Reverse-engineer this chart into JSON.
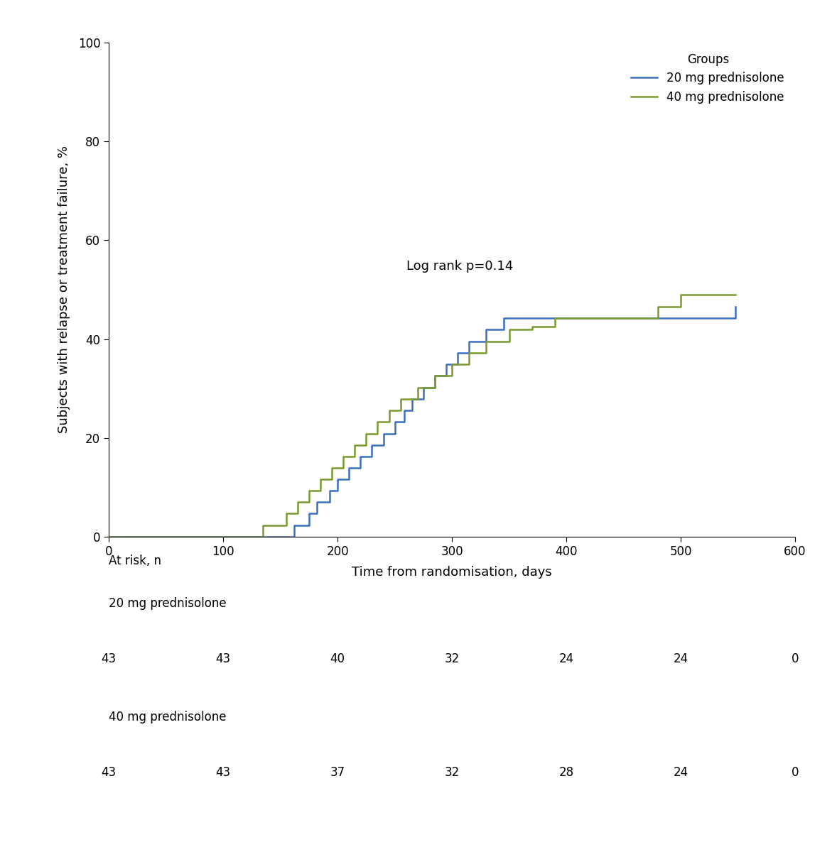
{
  "xlabel": "Time from randomisation, days",
  "ylabel": "Subjects with relapse or treatment failure, %",
  "xlim": [
    0,
    600
  ],
  "ylim": [
    0,
    100
  ],
  "xticks": [
    0,
    100,
    200,
    300,
    400,
    500,
    600
  ],
  "yticks": [
    0,
    20,
    40,
    60,
    80,
    100
  ],
  "log_rank_text": "Log rank p=0.14",
  "log_rank_x": 260,
  "log_rank_y": 54,
  "legend_title": "Groups",
  "legend_labels": [
    "20 mg prednisolone",
    "40 mg prednisolone"
  ],
  "color_20mg": "#3B6FBF",
  "color_40mg": "#7A9A2E",
  "line_width": 1.8,
  "blue_times": [
    0,
    155,
    162,
    175,
    182,
    193,
    200,
    210,
    220,
    230,
    240,
    250,
    258,
    265,
    275,
    285,
    295,
    305,
    315,
    330,
    345,
    358,
    370,
    385,
    400,
    415,
    440,
    460,
    548
  ],
  "blue_values": [
    0,
    0,
    2.3,
    4.7,
    7.0,
    9.3,
    11.6,
    14.0,
    16.3,
    18.6,
    20.9,
    23.3,
    25.6,
    27.9,
    30.2,
    32.6,
    34.9,
    37.2,
    39.5,
    41.9,
    44.2,
    44.2,
    44.2,
    44.2,
    44.2,
    44.2,
    44.2,
    44.2,
    46.5
  ],
  "green_times": [
    0,
    120,
    135,
    155,
    165,
    175,
    185,
    195,
    205,
    215,
    225,
    235,
    245,
    255,
    270,
    285,
    300,
    315,
    330,
    350,
    370,
    390,
    415,
    440,
    460,
    480,
    500,
    548
  ],
  "green_values": [
    0,
    0,
    2.3,
    4.7,
    7.0,
    9.3,
    11.6,
    14.0,
    16.3,
    18.6,
    20.9,
    23.3,
    25.6,
    27.9,
    30.2,
    32.6,
    34.9,
    37.2,
    39.5,
    41.9,
    42.5,
    44.2,
    44.2,
    44.2,
    44.2,
    46.5,
    49.0,
    49.0
  ],
  "at_risk_label": "At risk, n",
  "at_risk_20_label": "20 mg prednisolone",
  "at_risk_40_label": "40 mg prednisolone",
  "at_risk_x_positions": [
    0,
    100,
    200,
    300,
    400,
    500,
    600
  ],
  "at_risk_20_values": [
    "43",
    "43",
    "40",
    "32",
    "24",
    "24",
    "0"
  ],
  "at_risk_40_values": [
    "43",
    "43",
    "37",
    "32",
    "28",
    "24",
    "0"
  ],
  "font_size_axis_label": 13,
  "font_size_tick_label": 12,
  "font_size_legend": 12,
  "font_size_at_risk": 12,
  "font_size_logrank": 13
}
